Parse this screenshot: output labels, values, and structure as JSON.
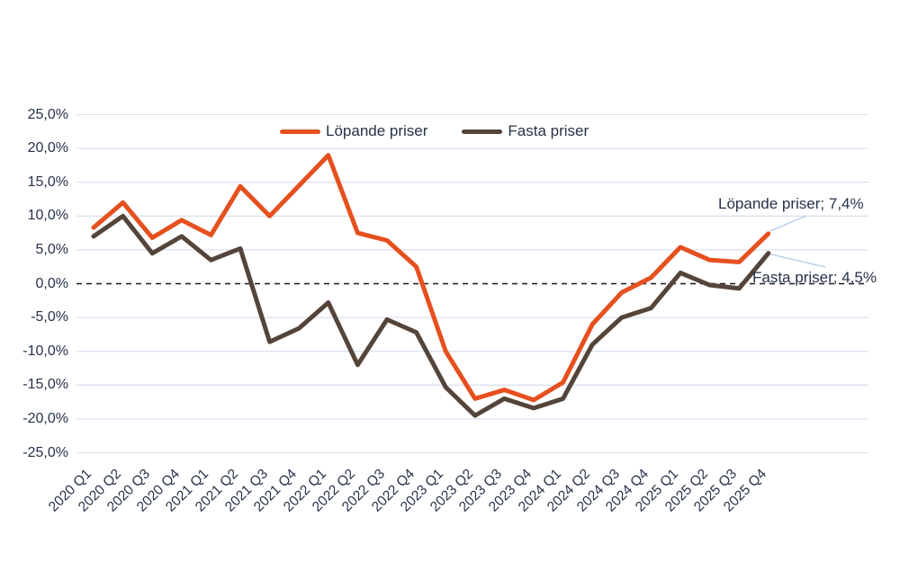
{
  "chart_data": {
    "type": "line",
    "title": "",
    "categories": [
      "2020 Q1",
      "2020 Q2",
      "2020 Q3",
      "2020 Q4",
      "2021 Q1",
      "2021 Q2",
      "2021 Q3",
      "2021 Q4",
      "2022 Q1",
      "2022 Q2",
      "2022 Q3",
      "2022 Q4",
      "2023 Q1",
      "2023 Q2",
      "2023 Q3",
      "2023 Q4",
      "2024 Q1",
      "2024 Q2",
      "2024 Q3",
      "2024 Q4",
      "2025 Q1",
      "2025 Q2",
      "2025 Q3",
      "2025 Q4"
    ],
    "series": [
      {
        "name": "Löpande priser",
        "color": "#E6501E",
        "values": [
          8.3,
          12.0,
          6.8,
          9.4,
          7.2,
          14.4,
          10.0,
          14.5,
          19.0,
          7.5,
          6.4,
          2.5,
          -10.0,
          -17.0,
          -15.7,
          -17.2,
          -14.6,
          -6.0,
          -1.3,
          0.9,
          5.4,
          3.5,
          3.2,
          7.4
        ]
      },
      {
        "name": "Fasta priser",
        "color": "#54443A",
        "values": [
          7.0,
          10.0,
          4.5,
          7.0,
          3.5,
          5.2,
          -8.6,
          -6.6,
          -2.8,
          -12.0,
          -5.3,
          -7.2,
          -15.3,
          -19.5,
          -17.0,
          -18.4,
          -17.0,
          -9.0,
          -5.0,
          -3.6,
          1.6,
          -0.2,
          -0.7,
          4.5
        ]
      }
    ],
    "xlabel": "",
    "ylabel": "",
    "ylim": [
      -25,
      25
    ],
    "y_tick_step": 5,
    "y_tick_labels": [
      "25,0%",
      "20,0%",
      "15,0%",
      "10,0%",
      "5,0%",
      "0,0%",
      "-5,0%",
      "-10,0%",
      "-15,0%",
      "-20,0%",
      "-25,0%"
    ],
    "grid": true,
    "zero_line": "dashed-black",
    "legend_position": "top-center",
    "annotations": [
      {
        "text": "Löpande priser; 7,4%",
        "series": "Löpande priser",
        "point": "2025 Q4",
        "value": 7.4
      },
      {
        "text": "Fasta priser; 4,5%",
        "series": "Fasta priser",
        "point": "2025 Q4",
        "value": 4.5
      }
    ]
  },
  "colors": {
    "series_lopande": "#E6501E",
    "series_fasta": "#54443A",
    "gridline": "#D9E2F0",
    "zero_line": "#1a1a1a",
    "axis_text": "#263249",
    "leader_line": "#A9C6E8",
    "background": "#ffffff"
  }
}
